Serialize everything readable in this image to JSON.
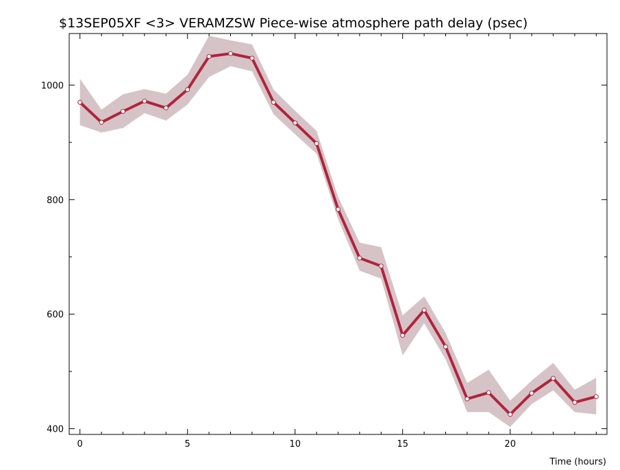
{
  "chart_data": {
    "type": "line",
    "title": "$13SEP05XF <3>  VERAMZSW  Piece-wise atmosphere path delay (psec)",
    "xlabel": "Time (hours)",
    "ylabel": "",
    "xlim": [
      -0.5,
      24.5
    ],
    "ylim": [
      390,
      1090
    ],
    "x_ticks": [
      0,
      5,
      10,
      15,
      20
    ],
    "x_tick_labels": [
      "0",
      "5",
      "10",
      "15",
      "20"
    ],
    "x_minor_ticks": [
      1,
      2,
      3,
      4,
      6,
      7,
      8,
      9,
      11,
      12,
      13,
      14,
      16,
      17,
      18,
      19,
      21,
      22,
      23,
      24
    ],
    "y_ticks": [
      400,
      600,
      800,
      1000
    ],
    "y_tick_labels": [
      "400",
      "600",
      "800",
      "1000"
    ],
    "y_minor_ticks": [
      500,
      700,
      900
    ],
    "grid": false,
    "colors": {
      "line": "#b0243c",
      "band": "#d6c3c7",
      "marker_fill": "#ffffff",
      "axis": "#000000"
    },
    "series": [
      {
        "x": [
          0,
          1,
          2,
          3,
          4,
          5,
          6,
          7,
          8,
          9,
          10,
          11,
          12,
          13,
          14,
          15,
          16,
          17,
          18,
          19,
          20,
          21,
          22,
          23,
          24
        ],
        "values": [
          970,
          935,
          954,
          972,
          960,
          992,
          1050,
          1055,
          1047,
          970,
          934,
          898,
          783,
          698,
          684,
          563,
          607,
          543,
          452,
          463,
          425,
          462,
          488,
          446,
          456
        ],
        "upper": [
          1011,
          957,
          984,
          993,
          985,
          1018,
          1086,
          1078,
          1071,
          992,
          955,
          920,
          805,
          725,
          717,
          598,
          631,
          567,
          480,
          503,
          449,
          484,
          515,
          468,
          489
        ],
        "lower": [
          930,
          917,
          925,
          951,
          938,
          966,
          1014,
          1033,
          1024,
          949,
          914,
          880,
          766,
          676,
          662,
          528,
          584,
          521,
          429,
          429,
          403,
          443,
          467,
          429,
          425
        ]
      }
    ]
  }
}
